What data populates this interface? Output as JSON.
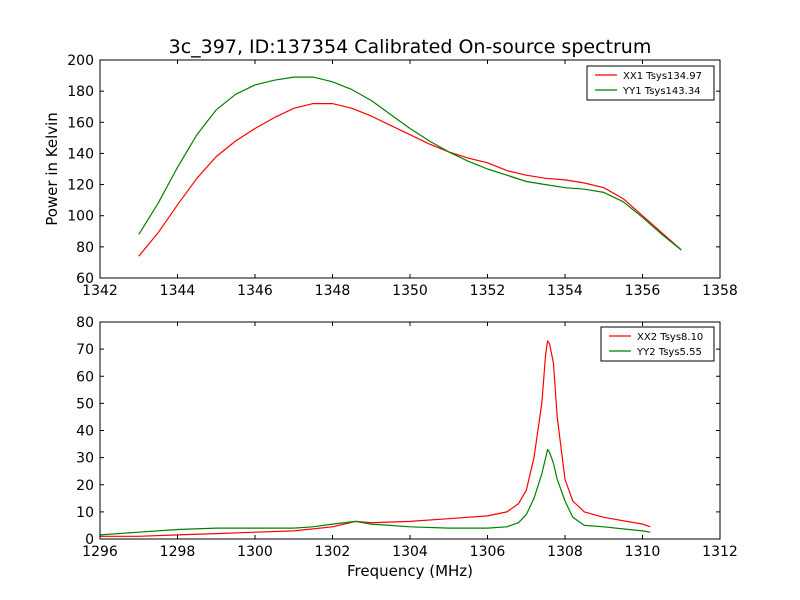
{
  "chart_data": [
    {
      "type": "line",
      "title": "3c_397, ID:137354 Calibrated On-source spectrum",
      "xlabel": "",
      "ylabel": "Power in Kelvin",
      "xlim": [
        1342,
        1358
      ],
      "ylim": [
        60,
        200
      ],
      "xticks": [
        "1342",
        "1344",
        "1346",
        "1348",
        "1350",
        "1352",
        "1354",
        "1356",
        "1358"
      ],
      "yticks": [
        "60",
        "80",
        "100",
        "120",
        "140",
        "160",
        "180",
        "200"
      ],
      "grid": false,
      "legend": "top-right",
      "series": [
        {
          "name": "XX1 Tsys134.97",
          "color": "#ff0000",
          "x": [
            1343.0,
            1343.5,
            1344.0,
            1344.5,
            1345.0,
            1345.5,
            1346.0,
            1346.5,
            1347.0,
            1347.5,
            1348.0,
            1348.5,
            1349.0,
            1349.5,
            1350.0,
            1350.5,
            1351.0,
            1351.5,
            1352.0,
            1352.5,
            1353.0,
            1353.5,
            1354.0,
            1354.5,
            1355.0,
            1355.5,
            1356.0,
            1356.5,
            1357.0
          ],
          "values": [
            74,
            89,
            107,
            124,
            138,
            148,
            156,
            163,
            169,
            172,
            172,
            169,
            164,
            158,
            152,
            146,
            141,
            137,
            134,
            129,
            126,
            124,
            123,
            121,
            118,
            111,
            100,
            89,
            78
          ]
        },
        {
          "name": "YY1 Tsys143.34",
          "color": "#008000",
          "x": [
            1343.0,
            1343.5,
            1344.0,
            1344.5,
            1345.0,
            1345.5,
            1346.0,
            1346.5,
            1347.0,
            1347.5,
            1348.0,
            1348.5,
            1349.0,
            1349.5,
            1350.0,
            1350.5,
            1351.0,
            1351.5,
            1352.0,
            1352.5,
            1353.0,
            1353.5,
            1354.0,
            1354.5,
            1355.0,
            1355.5,
            1356.0,
            1356.5,
            1357.0
          ],
          "values": [
            88,
            108,
            131,
            152,
            168,
            178,
            184,
            187,
            189,
            189,
            186,
            181,
            174,
            165,
            156,
            148,
            141,
            135,
            130,
            126,
            122,
            120,
            118,
            117,
            115,
            109,
            99,
            88,
            78
          ]
        }
      ]
    },
    {
      "type": "line",
      "title": "",
      "xlabel": "Frequency (MHz)",
      "ylabel": "",
      "xlim": [
        1296,
        1312
      ],
      "ylim": [
        0,
        80
      ],
      "xticks": [
        "1296",
        "1298",
        "1300",
        "1302",
        "1304",
        "1306",
        "1308",
        "1310",
        "1312"
      ],
      "yticks": [
        "0",
        "10",
        "20",
        "30",
        "40",
        "50",
        "60",
        "70",
        "80"
      ],
      "grid": false,
      "legend": "top-right",
      "series": [
        {
          "name": "XX2 Tsys8.10",
          "color": "#ff0000",
          "x": [
            1296.0,
            1297.0,
            1298.0,
            1299.0,
            1300.0,
            1301.0,
            1302.0,
            1302.6,
            1303.0,
            1304.0,
            1305.0,
            1306.0,
            1306.5,
            1306.8,
            1307.0,
            1307.2,
            1307.4,
            1307.5,
            1307.55,
            1307.6,
            1307.7,
            1307.8,
            1308.0,
            1308.2,
            1308.5,
            1309.0,
            1310.0,
            1310.2
          ],
          "values": [
            1,
            1,
            1.5,
            2,
            2.5,
            3,
            4.5,
            6.5,
            6,
            6.5,
            7.5,
            8.5,
            10,
            13,
            18,
            30,
            50,
            68,
            73,
            72,
            65,
            45,
            22,
            14,
            10,
            8,
            5.5,
            4.5
          ]
        },
        {
          "name": "YY2 Tsys5.55",
          "color": "#008000",
          "x": [
            1296.0,
            1297.0,
            1298.0,
            1299.0,
            1300.0,
            1301.0,
            1301.5,
            1302.0,
            1302.6,
            1303.0,
            1304.0,
            1305.0,
            1306.0,
            1306.5,
            1306.8,
            1307.0,
            1307.2,
            1307.4,
            1307.55,
            1307.6,
            1307.7,
            1307.8,
            1308.0,
            1308.2,
            1308.5,
            1309.0,
            1310.0,
            1310.2
          ],
          "values": [
            1.5,
            2.5,
            3.5,
            4,
            4,
            4,
            4.5,
            5.5,
            6.5,
            5.5,
            4.5,
            4,
            4,
            4.5,
            6,
            9,
            15,
            24,
            33,
            32,
            28,
            22,
            14,
            8,
            5,
            4.5,
            3,
            2.5
          ]
        }
      ]
    }
  ]
}
